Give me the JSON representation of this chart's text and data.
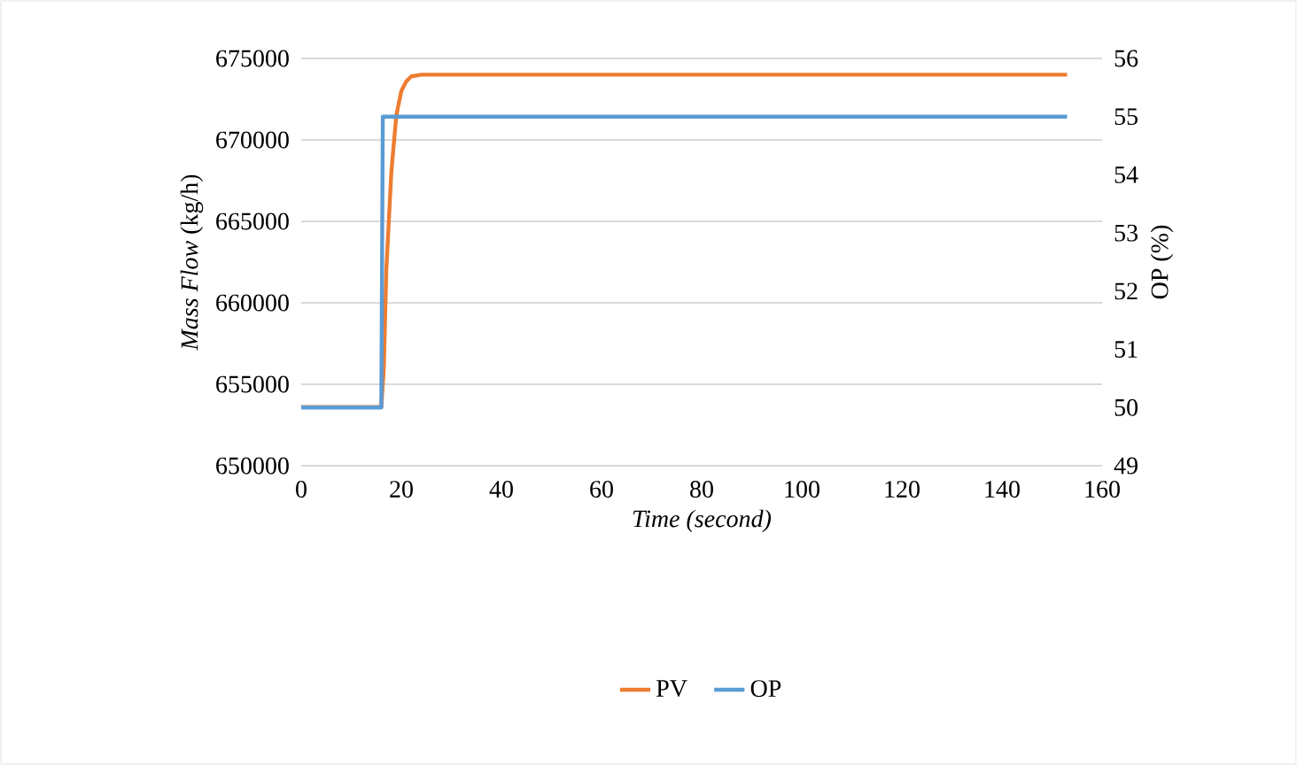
{
  "chart_data": {
    "type": "line",
    "xlabel": "Time (second)",
    "ylabel": "*Mass Flow* (kg/h)",
    "y2label": "OP (%)",
    "xlim": [
      0,
      160
    ],
    "xticks": [
      0,
      20,
      40,
      60,
      80,
      100,
      120,
      140,
      160
    ],
    "ylim": [
      650000,
      675000
    ],
    "yticks": [
      650000,
      655000,
      660000,
      665000,
      670000,
      675000
    ],
    "y2lim": [
      49,
      56
    ],
    "y2ticks": [
      49,
      50,
      51,
      52,
      53,
      54,
      55,
      56
    ],
    "grid": "y",
    "legend": "bottom",
    "series": [
      {
        "name": "PV",
        "color": "#ed7d31",
        "x": [
          0,
          16,
          16.5,
          17,
          18,
          19,
          20,
          21,
          22,
          24,
          153
        ],
        "values": [
          653600,
          653600,
          656000,
          662000,
          668000,
          671500,
          673000,
          673600,
          673900,
          674000,
          674000
        ]
      },
      {
        "name": "OP",
        "color": "#5b9bd5",
        "axis": "y2",
        "x": [
          0,
          16,
          16.3,
          153
        ],
        "values": [
          50,
          50,
          55,
          55
        ]
      }
    ]
  }
}
